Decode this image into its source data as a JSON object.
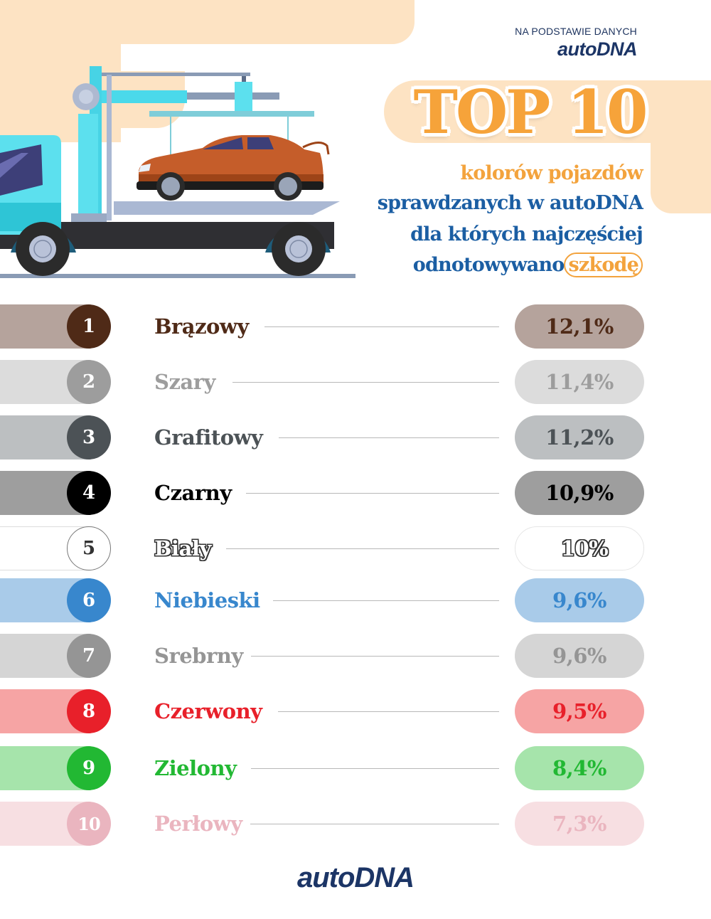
{
  "header": {
    "source_label": "NA PODSTAWIE DANYCH",
    "source_logo": "autoDNA",
    "title": "TOP 10",
    "subtitle_line1": "kolorów pojazdów",
    "subtitle_line2": "sprawdzanych w autoDNA",
    "subtitle_line3": "dla których najczęściej",
    "subtitle_line4_prefix": "odnotowywano",
    "subtitle_line4_highlight": "szkodę"
  },
  "illustration": {
    "description": "tow-truck-carrying-damaged-car"
  },
  "colors": {
    "peach_bg": "#fde3c3",
    "title_orange": "#f6a33a",
    "subtitle_blue": "#1b5ea3",
    "brand_navy": "#1c3566"
  },
  "rows": [
    {
      "rank": "1",
      "name": "Brązowy",
      "value": "12,1%",
      "bar": "#b5a39c",
      "circle": "#4f2a17",
      "text": "#4f2a17"
    },
    {
      "rank": "2",
      "name": "Szary",
      "value": "11,4%",
      "bar": "#dcdcdc",
      "circle": "#9d9d9d",
      "text": "#9d9d9d"
    },
    {
      "rank": "3",
      "name": "Grafitowy",
      "value": "11,2%",
      "bar": "#bcbfc1",
      "circle": "#4c5256",
      "text": "#4c5256"
    },
    {
      "rank": "4",
      "name": "Czarny",
      "value": "10,9%",
      "bar": "#9e9e9e",
      "circle": "#000000",
      "text": "#000000"
    },
    {
      "rank": "5",
      "name": "Biały",
      "value": "10%",
      "bar": "#ffffff",
      "circle": "#ffffff",
      "text": "#333333"
    },
    {
      "rank": "6",
      "name": "Niebieski",
      "value": "9,6%",
      "bar": "#a9cbe9",
      "circle": "#3887cd",
      "text": "#3887cd"
    },
    {
      "rank": "7",
      "name": "Srebrny",
      "value": "9,6%",
      "bar": "#d5d5d5",
      "circle": "#959595",
      "text": "#959595"
    },
    {
      "rank": "8",
      "name": "Czerwony",
      "value": "9,5%",
      "bar": "#f6a4a4",
      "circle": "#e8202a",
      "text": "#e8202a"
    },
    {
      "rank": "9",
      "name": "Zielony",
      "value": "8,4%",
      "bar": "#a6e4ab",
      "circle": "#22b833",
      "text": "#22b833"
    },
    {
      "rank": "10",
      "name": "Perłowy",
      "value": "7,3%",
      "bar": "#f7dfe2",
      "circle": "#eab5bf",
      "text": "#eab5bf"
    }
  ],
  "footer": {
    "logo": "autoDNA"
  },
  "chart_data": {
    "type": "bar",
    "title": "TOP 10 kolorów pojazdów sprawdzanych w autoDNA dla których najczęściej odnotowywano szkodę",
    "categories": [
      "Brązowy",
      "Szary",
      "Grafitowy",
      "Czarny",
      "Biały",
      "Niebieski",
      "Srebrny",
      "Czerwony",
      "Zielony",
      "Perłowy"
    ],
    "values": [
      12.1,
      11.4,
      11.2,
      10.9,
      10.0,
      9.6,
      9.6,
      9.5,
      8.4,
      7.3
    ],
    "value_labels": [
      "12,1%",
      "11,4%",
      "11,2%",
      "10,9%",
      "10%",
      "9,6%",
      "9,6%",
      "9,5%",
      "8,4%",
      "7,3%"
    ],
    "ranks": [
      1,
      2,
      3,
      4,
      5,
      6,
      7,
      8,
      9,
      10
    ],
    "unit": "%",
    "xlabel": "",
    "ylabel": "",
    "source": "NA PODSTAWIE DANYCH autoDNA"
  }
}
